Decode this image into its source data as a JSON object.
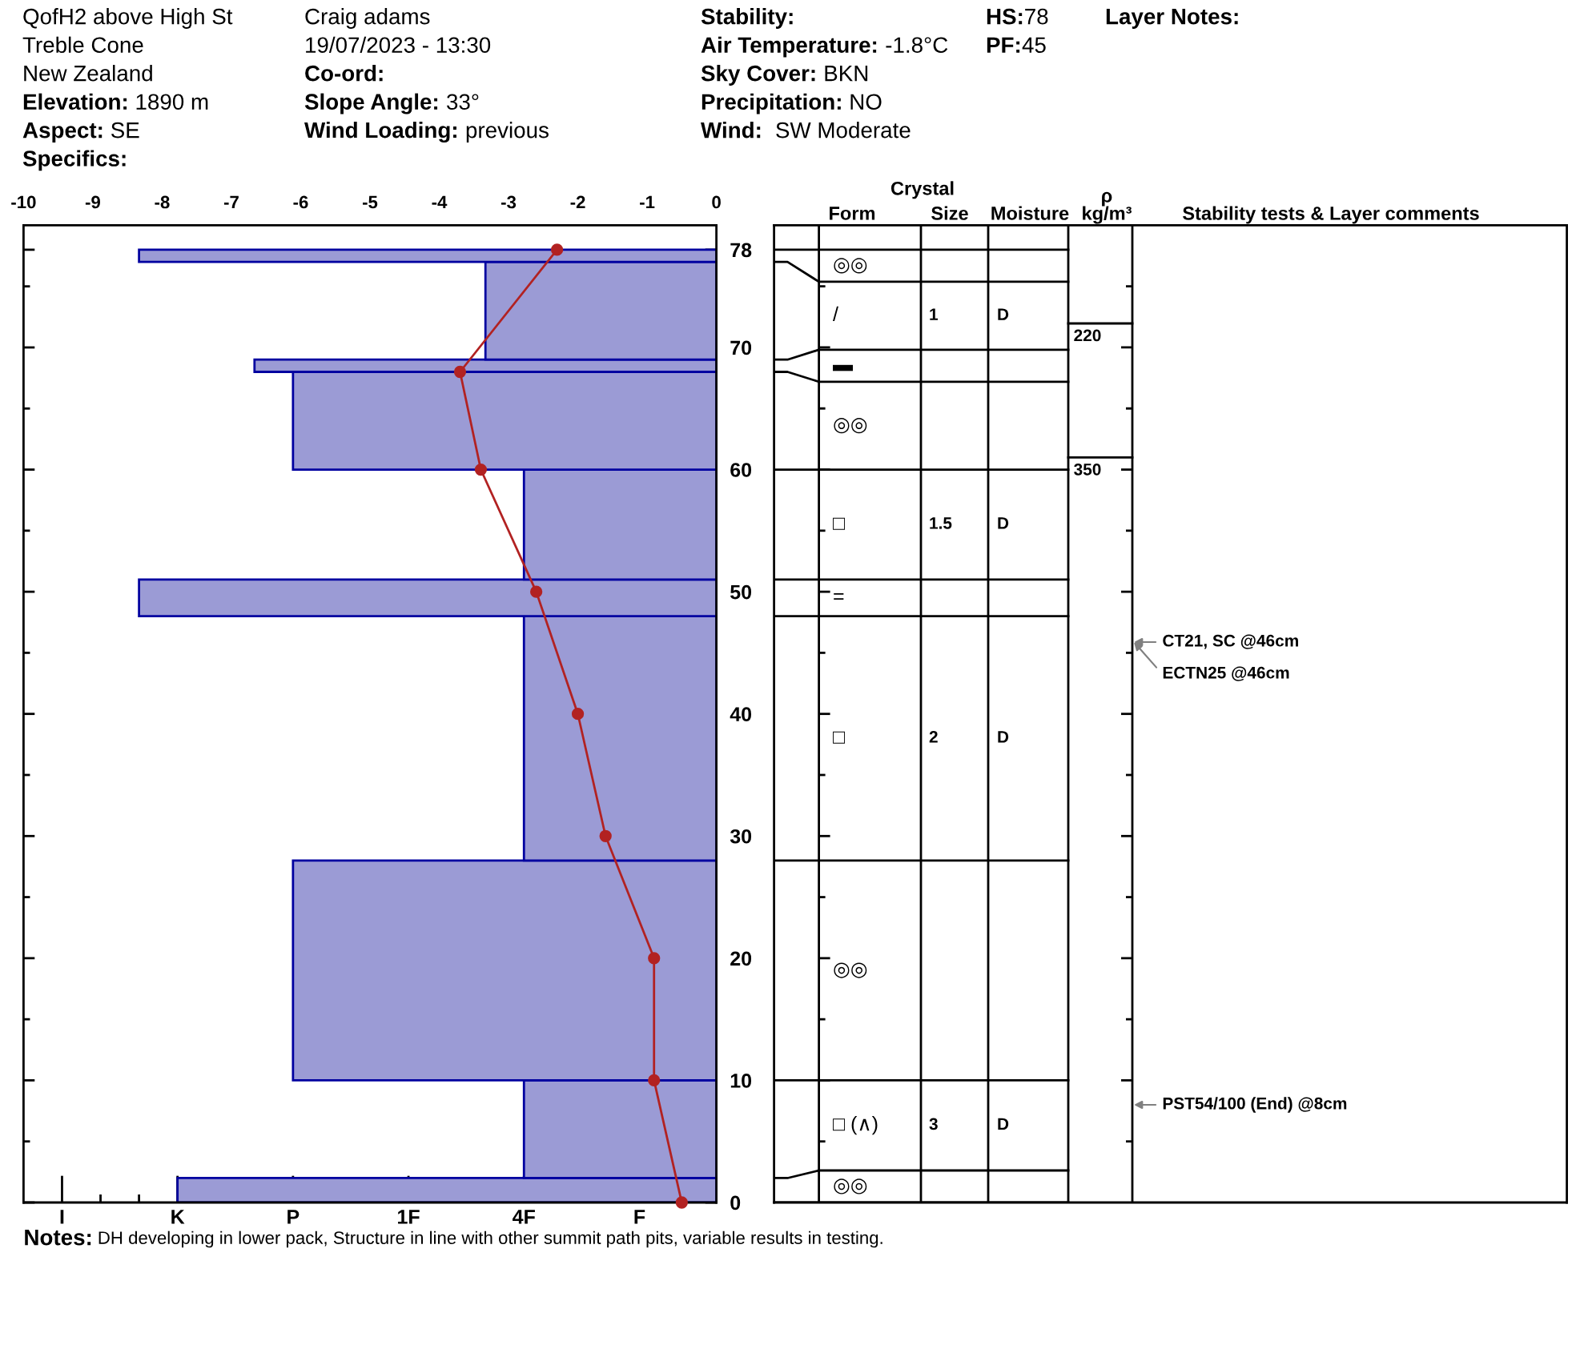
{
  "chart_data": [
    {
      "type": "histogram",
      "orientation": "horizontal",
      "bins": [
        0,
        2,
        10,
        28,
        48,
        51,
        60,
        68,
        69,
        77,
        78
      ],
      "series": [
        {
          "type": "histogram",
          "color": "#9b9bd5",
          "base": [
            9,
            9,
            9,
            9,
            9,
            9,
            9,
            9,
            9,
            9
          ],
          "values": [
            -14,
            -5,
            -11,
            -5,
            -15,
            -5,
            -11,
            -12,
            -6,
            -15
          ]
        },
        {
          "type": "line",
          "axis": "x2",
          "color": "#b22222",
          "x": [
            78,
            68,
            60,
            50,
            40,
            30,
            20,
            10,
            0
          ],
          "values": [
            -2.3,
            -3.7,
            -3.4,
            -2.6,
            -2.0,
            -1.6,
            -0.9,
            -0.9,
            -0.5
          ]
        }
      ],
      "xlim": [
        -9,
        9
      ],
      "xticks": [
        {
          "value": -8,
          "label": "I"
        },
        {
          "value": -7,
          "label": null
        },
        {
          "value": -6,
          "label": null
        },
        {
          "value": -5,
          "label": "K"
        },
        {
          "value": -4,
          "label": null
        },
        {
          "value": -3,
          "label": null
        },
        {
          "value": -2,
          "label": "P"
        },
        {
          "value": -1,
          "label": null
        },
        {
          "value": 0,
          "label": null
        },
        {
          "value": 1,
          "label": "1F"
        },
        {
          "value": 2,
          "label": null
        },
        {
          "value": 3,
          "label": null
        },
        {
          "value": 4,
          "label": "4F"
        },
        {
          "value": 5,
          "label": null
        },
        {
          "value": 6,
          "label": null
        },
        {
          "value": 7,
          "label": "F"
        },
        {
          "value": 8,
          "label": null
        }
      ],
      "x2lim": [
        -10,
        0
      ],
      "x2ticks": [
        -10,
        -9,
        -8,
        -7,
        -6,
        -5,
        -4,
        -3,
        -2,
        -1,
        0
      ],
      "ylim": [
        0,
        80
      ],
      "yticks": [
        0,
        {
          "value": 5,
          "label": null
        },
        10,
        {
          "value": 15,
          "label": null
        },
        20,
        {
          "value": 25,
          "label": null
        },
        30,
        {
          "value": 35,
          "label": null
        },
        40,
        {
          "value": 45,
          "label": null
        },
        50,
        {
          "value": 55,
          "label": null
        },
        60,
        {
          "value": 65,
          "label": null
        },
        70,
        {
          "value": 75,
          "label": null
        },
        78
      ],
      "marker": "circle",
      "line_style": "solid",
      "annotations": [
        "QofH2 above High St",
        "Treble Cone",
        "New Zealand",
        "Elevation: 1890 m",
        "Aspect: SE",
        "Specifics:",
        "Craig adams",
        "19/07/2023 - 13:30",
        "Co-ord:",
        "Slope Angle: 33°",
        "Wind Loading: previous",
        "Stability:",
        "Air Temperature: -1.8°C",
        "Sky Cover: BKN",
        "Precipitation: NO",
        "Wind:  SW Moderate",
        "HS:78",
        "PF:45",
        "Layer Notes:",
        "Notes: DH developing in lower pack, Structure in line with other summit path pits, variable results in testing."
      ]
    },
    {
      "type": "other",
      "categories": [
        "Form",
        "Size",
        "Moisture",
        "ρ\nkg/m³",
        "Stability tests & Layer comments"
      ],
      "cell_labels": [
        [
          "◎◎",
          null,
          null,
          null,
          null
        ],
        [
          "/",
          "1",
          "D",
          null,
          null
        ],
        [
          "▬",
          null,
          null,
          null,
          null
        ],
        [
          "◎◎",
          null,
          null,
          null,
          null
        ],
        [
          "□",
          "1.5",
          "D",
          null,
          null
        ],
        [
          "=",
          null,
          null,
          null,
          null
        ],
        [
          "□",
          "2",
          "D",
          null,
          null
        ],
        [
          "◎◎",
          null,
          null,
          null,
          null
        ],
        [
          "□ (∧)",
          "3",
          "D",
          null,
          null
        ],
        [
          "◎◎",
          null,
          null,
          null,
          null
        ]
      ],
      "annotations": [
        "Crystal",
        "220",
        "350",
        "CT21, SC @46cm",
        "ECTN25 @46cm",
        "PST54/100 (End) @8cm"
      ]
    }
  ]
}
